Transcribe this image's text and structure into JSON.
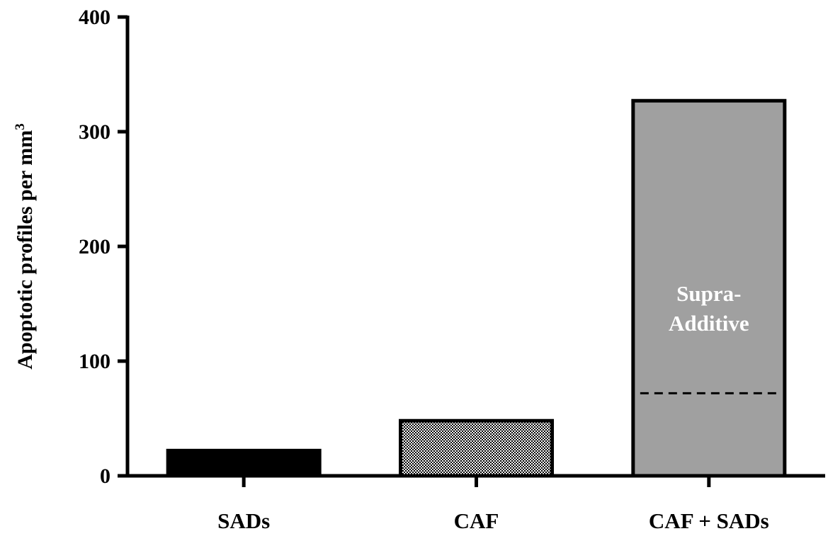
{
  "chart_data": {
    "type": "bar",
    "categories": [
      "SADs",
      "CAF",
      "CAF + SADs"
    ],
    "values": [
      22,
      48,
      327
    ],
    "ylabel": "Apoptotic profiles per mm",
    "ylabel_superscript": "3",
    "xlabel": "",
    "ylim": [
      0,
      400
    ],
    "yticks": [
      0,
      100,
      200,
      300,
      400
    ],
    "grid": false,
    "legend": "none",
    "bar_fills": [
      "#000000",
      "checker-pattern",
      "#a0a0a0"
    ],
    "annotation": {
      "lines": [
        "Supra-",
        "Additive"
      ],
      "dashed_line_value": 72,
      "dashed_line_category": "CAF + SADs"
    }
  }
}
